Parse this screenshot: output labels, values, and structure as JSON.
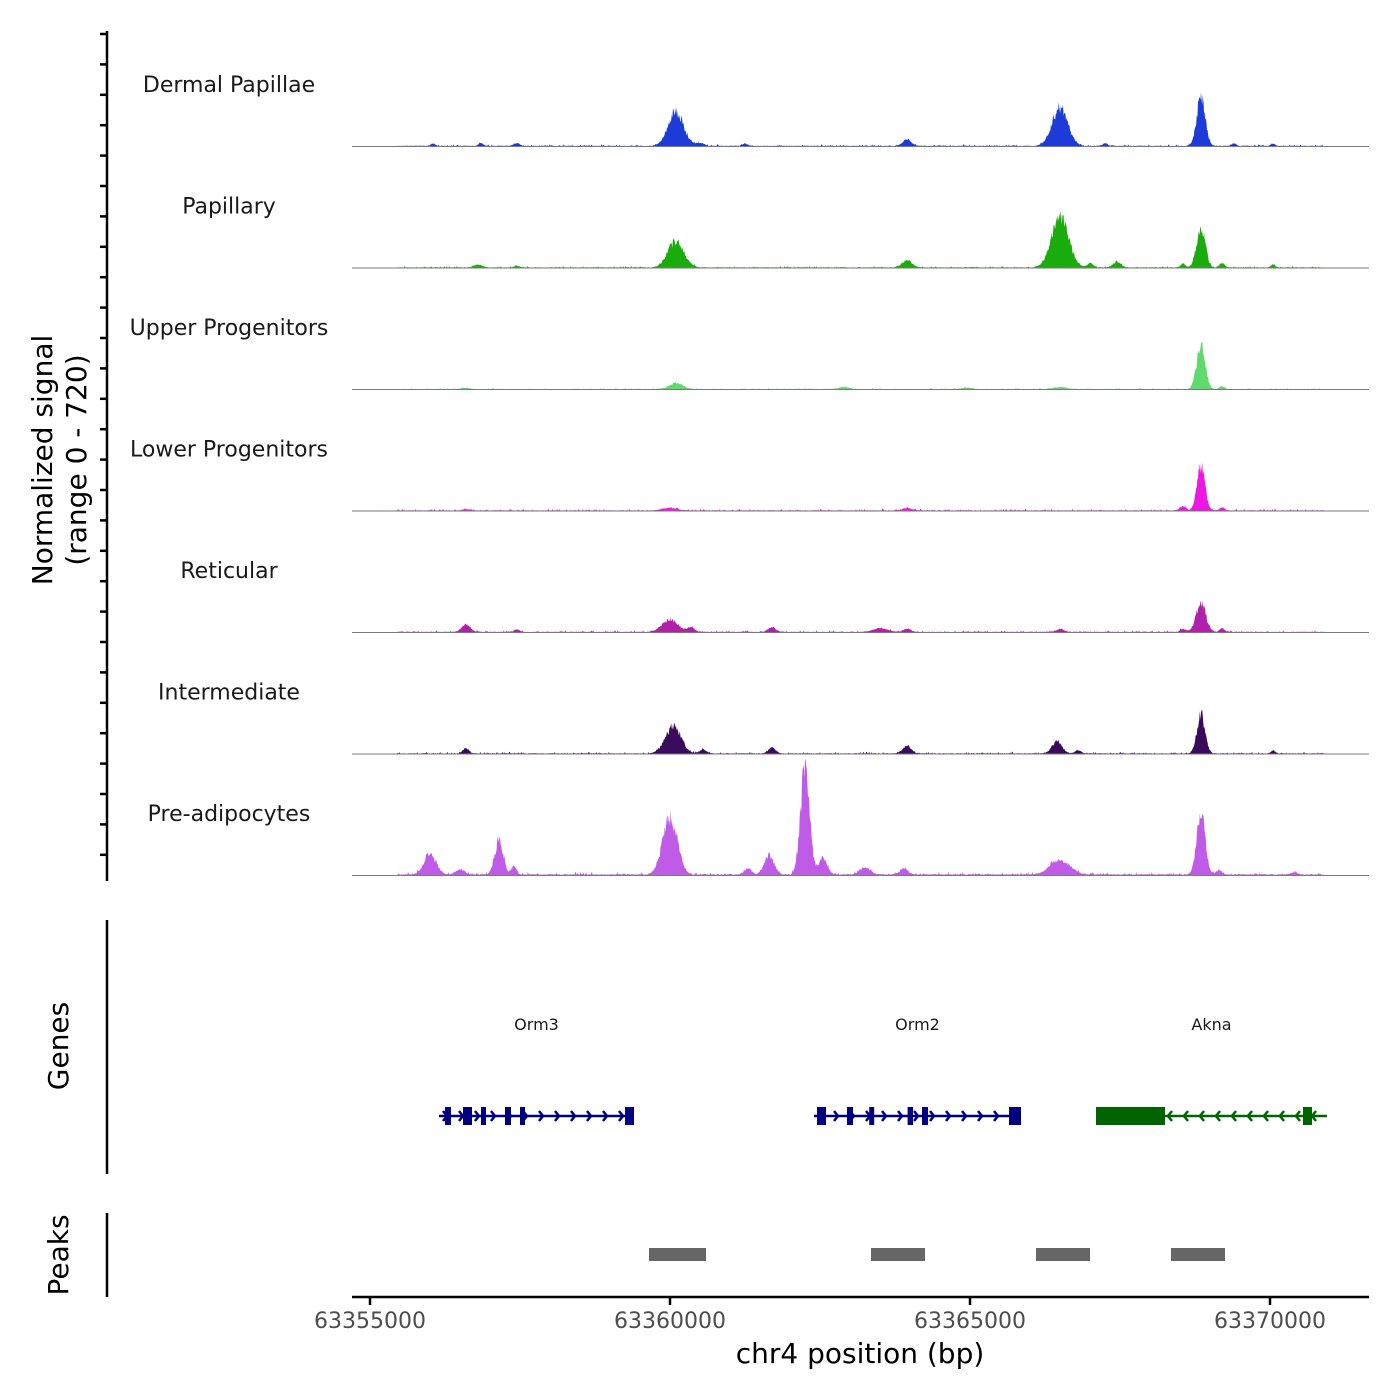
{
  "chart_data": {
    "type": "area",
    "title": "",
    "ylabel_line1": "Normalized signal",
    "ylabel_line2": "(range 0 - 720)",
    "xlabel": "chr4 position (bp)",
    "chromosome": "chr4",
    "signal_range": [
      0,
      720
    ],
    "xlim": [
      63354700,
      63371650
    ],
    "x_ticks": [
      63355000,
      63360000,
      63365000,
      63370000
    ],
    "x_tick_labels": [
      "63355000",
      "63360000",
      "63365000",
      "63370000"
    ],
    "signal_start": 63355450,
    "signal_end": 63370900,
    "tracks": [
      {
        "name": "Dermal Papillae",
        "color": "#1d3bd6",
        "noise": 3,
        "peaks": [
          {
            "pos": 63356050,
            "height": 8,
            "width": 35
          },
          {
            "pos": 63356850,
            "height": 10,
            "width": 35
          },
          {
            "pos": 63357450,
            "height": 9,
            "width": 50
          },
          {
            "pos": 63360100,
            "height": 112,
            "width": 130
          },
          {
            "pos": 63360500,
            "height": 10,
            "width": 60
          },
          {
            "pos": 63361250,
            "height": 8,
            "width": 40
          },
          {
            "pos": 63363950,
            "height": 22,
            "width": 70
          },
          {
            "pos": 63366500,
            "height": 130,
            "width": 130
          },
          {
            "pos": 63367250,
            "height": 8,
            "width": 40
          },
          {
            "pos": 63368850,
            "height": 165,
            "width": 70
          },
          {
            "pos": 63369400,
            "height": 9,
            "width": 35
          },
          {
            "pos": 63370050,
            "height": 8,
            "width": 35
          }
        ]
      },
      {
        "name": "Papillary",
        "color": "#1aab0c",
        "noise": 3,
        "peaks": [
          {
            "pos": 63356800,
            "height": 10,
            "width": 60
          },
          {
            "pos": 63357450,
            "height": 6,
            "width": 40
          },
          {
            "pos": 63360100,
            "height": 90,
            "width": 130
          },
          {
            "pos": 63363950,
            "height": 24,
            "width": 80
          },
          {
            "pos": 63366500,
            "height": 165,
            "width": 140
          },
          {
            "pos": 63367000,
            "height": 14,
            "width": 50
          },
          {
            "pos": 63367450,
            "height": 20,
            "width": 60
          },
          {
            "pos": 63368550,
            "height": 12,
            "width": 40
          },
          {
            "pos": 63368850,
            "height": 140,
            "width": 70
          },
          {
            "pos": 63369200,
            "height": 15,
            "width": 40
          },
          {
            "pos": 63370050,
            "height": 10,
            "width": 35
          }
        ]
      },
      {
        "name": "Upper Progenitors",
        "color": "#5edb6c",
        "noise": 2,
        "peaks": [
          {
            "pos": 63356600,
            "height": 4,
            "width": 60
          },
          {
            "pos": 63360100,
            "height": 20,
            "width": 110
          },
          {
            "pos": 63362900,
            "height": 7,
            "width": 80
          },
          {
            "pos": 63364950,
            "height": 5,
            "width": 80
          },
          {
            "pos": 63366500,
            "height": 7,
            "width": 100
          },
          {
            "pos": 63368850,
            "height": 150,
            "width": 70
          },
          {
            "pos": 63369200,
            "height": 10,
            "width": 40
          }
        ]
      },
      {
        "name": "Lower Progenitors",
        "color": "#ea18e0",
        "noise": 3,
        "peaks": [
          {
            "pos": 63356600,
            "height": 4,
            "width": 60
          },
          {
            "pos": 63360000,
            "height": 9,
            "width": 110
          },
          {
            "pos": 63363950,
            "height": 7,
            "width": 80
          },
          {
            "pos": 63368550,
            "height": 14,
            "width": 50
          },
          {
            "pos": 63368850,
            "height": 150,
            "width": 65
          },
          {
            "pos": 63369200,
            "height": 10,
            "width": 40
          }
        ]
      },
      {
        "name": "Reticular",
        "color": "#b020a8",
        "noise": 3,
        "peaks": [
          {
            "pos": 63356600,
            "height": 25,
            "width": 70
          },
          {
            "pos": 63357450,
            "height": 8,
            "width": 40
          },
          {
            "pos": 63360000,
            "height": 40,
            "width": 130
          },
          {
            "pos": 63360350,
            "height": 14,
            "width": 60
          },
          {
            "pos": 63361700,
            "height": 16,
            "width": 60
          },
          {
            "pos": 63363500,
            "height": 12,
            "width": 110
          },
          {
            "pos": 63363950,
            "height": 10,
            "width": 60
          },
          {
            "pos": 63366500,
            "height": 10,
            "width": 60
          },
          {
            "pos": 63368550,
            "height": 10,
            "width": 40
          },
          {
            "pos": 63368850,
            "height": 95,
            "width": 80
          },
          {
            "pos": 63369200,
            "height": 12,
            "width": 40
          }
        ]
      },
      {
        "name": "Intermediate",
        "color": "#3a0a5c",
        "noise": 3,
        "peaks": [
          {
            "pos": 63356600,
            "height": 17,
            "width": 50
          },
          {
            "pos": 63360050,
            "height": 90,
            "width": 130
          },
          {
            "pos": 63360550,
            "height": 12,
            "width": 60
          },
          {
            "pos": 63361700,
            "height": 19,
            "width": 60
          },
          {
            "pos": 63363950,
            "height": 26,
            "width": 70
          },
          {
            "pos": 63366450,
            "height": 40,
            "width": 80
          },
          {
            "pos": 63366800,
            "height": 10,
            "width": 50
          },
          {
            "pos": 63368850,
            "height": 135,
            "width": 65
          },
          {
            "pos": 63370050,
            "height": 10,
            "width": 35
          }
        ]
      },
      {
        "name": "Pre-adipocytes",
        "color": "#c05be8",
        "noise": 5,
        "peaks": [
          {
            "pos": 63356000,
            "height": 70,
            "width": 100
          },
          {
            "pos": 63356500,
            "height": 18,
            "width": 70
          },
          {
            "pos": 63357150,
            "height": 115,
            "width": 70
          },
          {
            "pos": 63357400,
            "height": 30,
            "width": 40
          },
          {
            "pos": 63360000,
            "height": 195,
            "width": 120
          },
          {
            "pos": 63361300,
            "height": 18,
            "width": 60
          },
          {
            "pos": 63361650,
            "height": 65,
            "width": 80
          },
          {
            "pos": 63362250,
            "height": 360,
            "width": 75
          },
          {
            "pos": 63362550,
            "height": 55,
            "width": 70
          },
          {
            "pos": 63363250,
            "height": 22,
            "width": 90
          },
          {
            "pos": 63363900,
            "height": 18,
            "width": 70
          },
          {
            "pos": 63366500,
            "height": 50,
            "width": 160
          },
          {
            "pos": 63368850,
            "height": 200,
            "width": 70
          },
          {
            "pos": 63369150,
            "height": 15,
            "width": 50
          },
          {
            "pos": 63370400,
            "height": 6,
            "width": 60
          }
        ]
      }
    ],
    "genes_label": "Genes",
    "genes": [
      {
        "name": "Orm3",
        "start": 63356150,
        "end": 63359400,
        "strand": "+",
        "color": "#000080",
        "exons": [
          [
            63356250,
            63356350
          ],
          [
            63356550,
            63356700
          ],
          [
            63356850,
            63356920
          ],
          [
            63357250,
            63357350
          ],
          [
            63357500,
            63357580
          ],
          [
            63359250,
            63359400
          ]
        ]
      },
      {
        "name": "Orm2",
        "start": 63362400,
        "end": 63365850,
        "strand": "+",
        "color": "#000080",
        "exons": [
          [
            63362450,
            63362600
          ],
          [
            63362950,
            63363050
          ],
          [
            63363320,
            63363380
          ],
          [
            63363960,
            63364050
          ],
          [
            63364200,
            63364300
          ],
          [
            63365650,
            63365850
          ]
        ]
      },
      {
        "name": "Akna",
        "start": 63367100,
        "end": 63370950,
        "strand": "-",
        "color": "#006400",
        "exons": [
          [
            63367100,
            63368250
          ],
          [
            63370550,
            63370700
          ]
        ]
      }
    ],
    "peaks_label": "Peaks",
    "peaks": [
      [
        63359650,
        63360600
      ],
      [
        63363350,
        63364250
      ],
      [
        63366100,
        63367000
      ],
      [
        63368350,
        63369250
      ]
    ]
  }
}
